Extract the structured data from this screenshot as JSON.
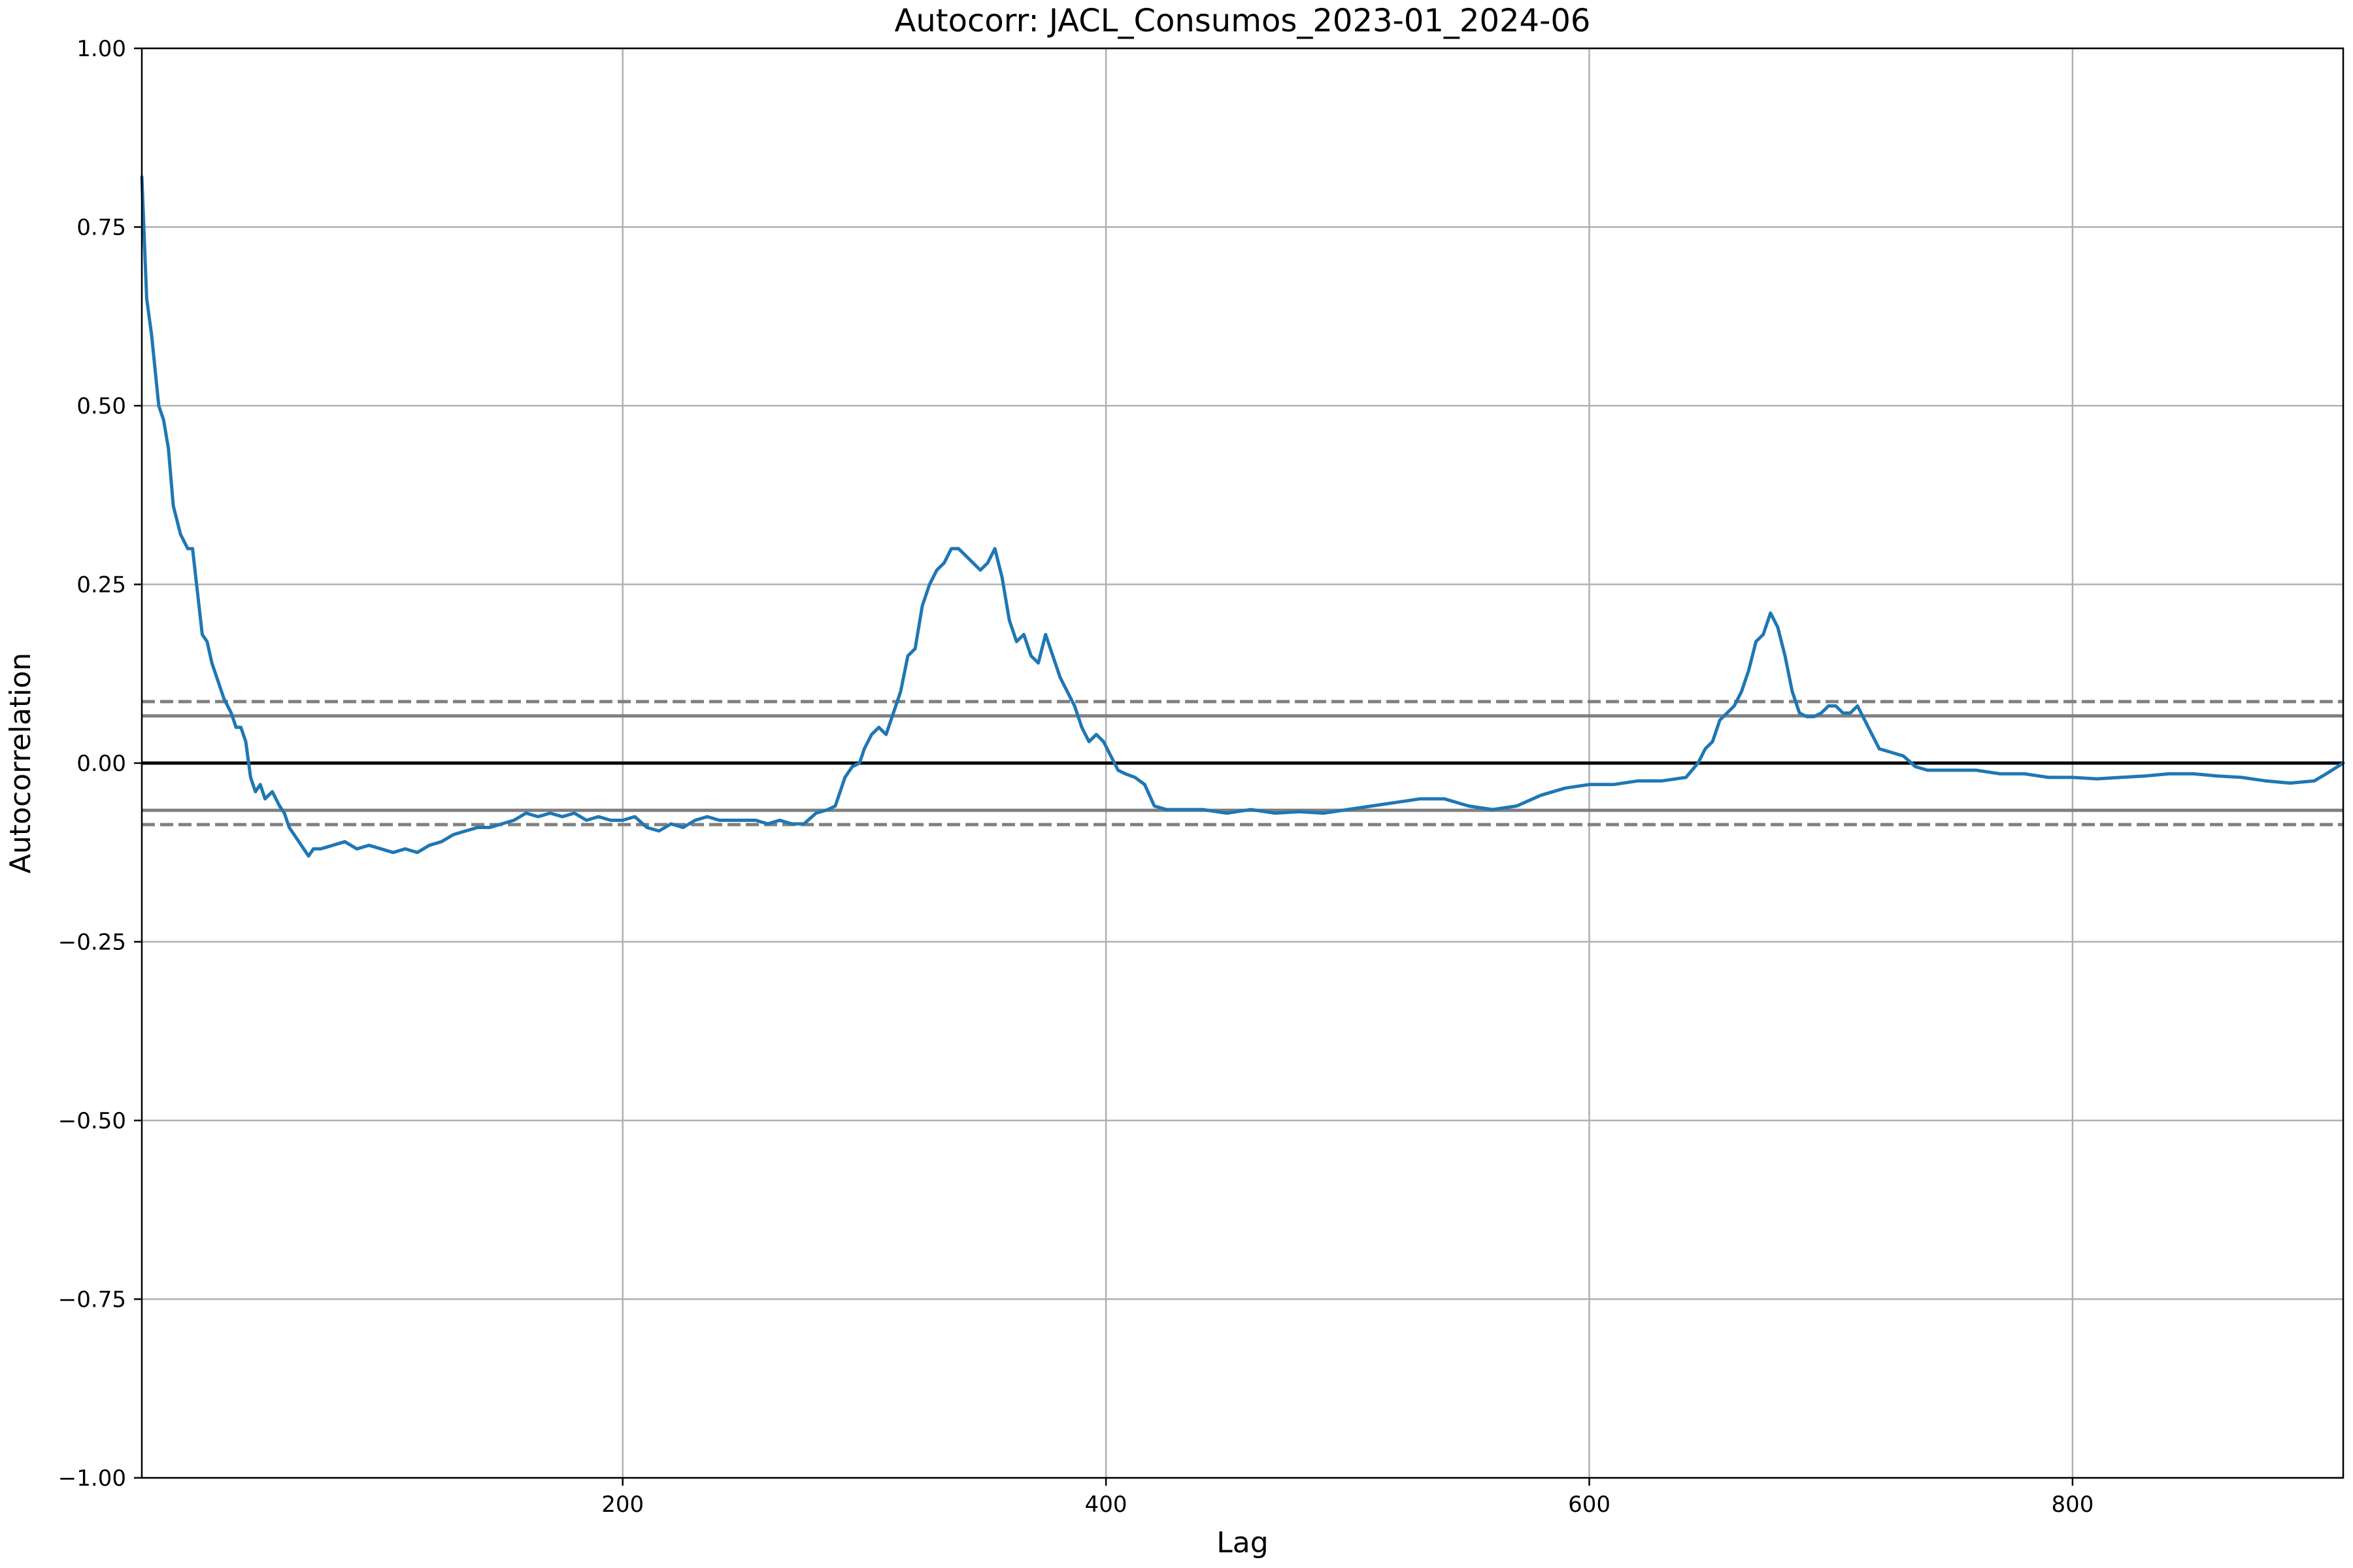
{
  "chart_data": {
    "type": "line",
    "title": "Autocorr: JACL_Consumos_2023-01_2024-06",
    "xlabel": "Lag",
    "ylabel": "Autocorrelation",
    "xlim": [
      1,
      912
    ],
    "ylim": [
      -1.0,
      1.0
    ],
    "grid": true,
    "x_ticks": [
      200,
      400,
      600,
      800
    ],
    "x_tick_labels": [
      "200",
      "400",
      "600",
      "800"
    ],
    "y_ticks": [
      1.0,
      0.75,
      0.5,
      0.25,
      0.0,
      -0.25,
      -0.5,
      -0.75,
      -1.0
    ],
    "y_tick_labels": [
      "1.00",
      "0.75",
      "0.50",
      "0.25",
      "0.00",
      "−0.25",
      "−0.50",
      "−0.75",
      "−1.00"
    ],
    "confidence_bands": {
      "solid_90": [
        0.066,
        -0.066
      ],
      "dashed_99": [
        0.086,
        -0.086
      ]
    },
    "colors": {
      "series": "#1f77b4",
      "zero_line": "#000000",
      "confidence": "#808080",
      "grid": "#b0b0b0"
    },
    "series": [
      {
        "x": [
          1,
          3,
          5,
          8,
          10,
          12,
          14,
          17,
          20,
          22,
          24,
          26,
          28,
          30,
          32,
          35,
          38,
          40,
          42,
          44,
          46,
          48,
          50,
          52,
          55,
          58,
          60,
          62,
          64,
          66,
          68,
          70,
          72,
          75,
          80,
          85,
          90,
          95,
          100,
          105,
          110,
          115,
          120,
          125,
          130,
          135,
          140,
          145,
          150,
          155,
          160,
          165,
          170,
          175,
          180,
          185,
          190,
          195,
          200,
          205,
          210,
          215,
          220,
          225,
          230,
          235,
          240,
          245,
          250,
          255,
          260,
          265,
          270,
          275,
          280,
          285,
          288,
          292,
          295,
          298,
          300,
          303,
          306,
          309,
          312,
          315,
          318,
          321,
          324,
          327,
          330,
          333,
          336,
          339,
          342,
          345,
          348,
          351,
          354,
          357,
          360,
          363,
          366,
          369,
          372,
          375,
          378,
          381,
          384,
          387,
          390,
          393,
          396,
          399,
          402,
          405,
          408,
          412,
          416,
          420,
          425,
          430,
          440,
          450,
          460,
          470,
          480,
          490,
          500,
          510,
          520,
          530,
          540,
          550,
          560,
          570,
          580,
          590,
          600,
          610,
          620,
          630,
          640,
          645,
          648,
          651,
          654,
          657,
          660,
          663,
          666,
          669,
          672,
          675,
          678,
          681,
          684,
          687,
          690,
          693,
          696,
          699,
          702,
          705,
          708,
          711,
          714,
          717,
          720,
          725,
          730,
          735,
          740,
          750,
          760,
          770,
          780,
          790,
          800,
          810,
          820,
          830,
          840,
          850,
          860,
          870,
          880,
          890,
          900,
          905,
          912
        ],
        "values": [
          0.82,
          0.65,
          0.6,
          0.5,
          0.48,
          0.44,
          0.36,
          0.32,
          0.3,
          0.3,
          0.24,
          0.18,
          0.17,
          0.14,
          0.12,
          0.09,
          0.07,
          0.05,
          0.05,
          0.03,
          -0.02,
          -0.04,
          -0.03,
          -0.05,
          -0.04,
          -0.06,
          -0.07,
          -0.09,
          -0.1,
          -0.11,
          -0.12,
          -0.13,
          -0.12,
          -0.12,
          -0.115,
          -0.11,
          -0.12,
          -0.115,
          -0.12,
          -0.125,
          -0.12,
          -0.125,
          -0.115,
          -0.11,
          -0.1,
          -0.095,
          -0.09,
          -0.09,
          -0.085,
          -0.08,
          -0.07,
          -0.075,
          -0.07,
          -0.075,
          -0.07,
          -0.08,
          -0.075,
          -0.08,
          -0.08,
          -0.075,
          -0.09,
          -0.095,
          -0.085,
          -0.09,
          -0.08,
          -0.075,
          -0.08,
          -0.08,
          -0.08,
          -0.08,
          -0.085,
          -0.08,
          -0.085,
          -0.085,
          -0.07,
          -0.065,
          -0.06,
          -0.02,
          -0.005,
          0.0,
          0.02,
          0.04,
          0.05,
          0.04,
          0.07,
          0.1,
          0.15,
          0.16,
          0.22,
          0.25,
          0.27,
          0.28,
          0.3,
          0.3,
          0.29,
          0.28,
          0.27,
          0.28,
          0.3,
          0.26,
          0.2,
          0.17,
          0.18,
          0.15,
          0.14,
          0.18,
          0.15,
          0.12,
          0.1,
          0.08,
          0.05,
          0.03,
          0.04,
          0.03,
          0.01,
          -0.01,
          -0.015,
          -0.02,
          -0.03,
          -0.06,
          -0.065,
          -0.065,
          -0.065,
          -0.07,
          -0.065,
          -0.07,
          -0.068,
          -0.07,
          -0.065,
          -0.06,
          -0.055,
          -0.05,
          -0.05,
          -0.06,
          -0.065,
          -0.06,
          -0.045,
          -0.035,
          -0.03,
          -0.03,
          -0.025,
          -0.025,
          -0.02,
          0.0,
          0.02,
          0.03,
          0.06,
          0.07,
          0.08,
          0.1,
          0.13,
          0.17,
          0.18,
          0.21,
          0.19,
          0.15,
          0.1,
          0.07,
          0.065,
          0.065,
          0.07,
          0.08,
          0.08,
          0.07,
          0.07,
          0.08,
          0.06,
          0.04,
          0.02,
          0.015,
          0.01,
          -0.005,
          -0.01,
          -0.01,
          -0.01,
          -0.015,
          -0.015,
          -0.02,
          -0.02,
          -0.022,
          -0.02,
          -0.018,
          -0.015,
          -0.015,
          -0.018,
          -0.02,
          -0.025,
          -0.028,
          -0.025,
          -0.015,
          0.0
        ]
      }
    ]
  }
}
